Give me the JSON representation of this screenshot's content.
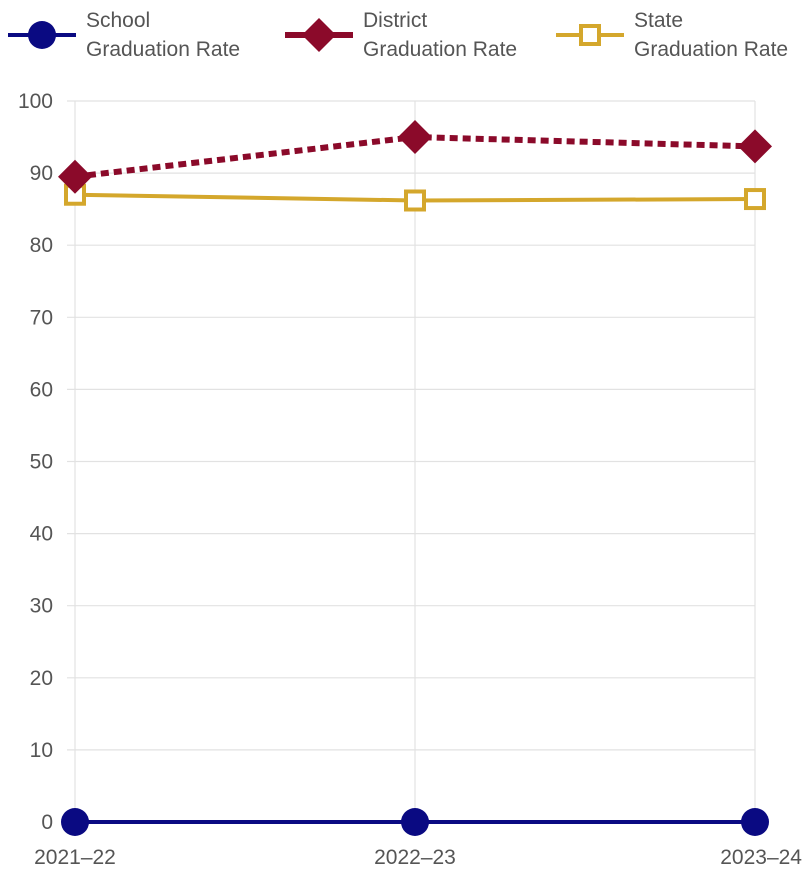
{
  "chart_data": {
    "type": "line",
    "title": "",
    "xlabel": "",
    "ylabel": "",
    "categories": [
      "2021–22",
      "2022–23",
      "2023–24"
    ],
    "ylim": [
      0,
      100
    ],
    "yticks": [
      0,
      10,
      20,
      30,
      40,
      50,
      60,
      70,
      80,
      90,
      100
    ],
    "grid": true,
    "legend_position": "top",
    "series": [
      {
        "key": "school",
        "legend_lines": [
          "School",
          "Graduation Rate"
        ],
        "values": [
          0,
          0,
          0
        ],
        "color": "#0a0a82",
        "marker": "circle",
        "line_style": "solid"
      },
      {
        "key": "district",
        "legend_lines": [
          "District",
          "Graduation Rate"
        ],
        "values": [
          89.5,
          95,
          93.7
        ],
        "color": "#8b0a2a",
        "marker": "diamond",
        "line_style": "dotted"
      },
      {
        "key": "state",
        "legend_lines": [
          "State",
          "Graduation Rate"
        ],
        "values": [
          87,
          86.2,
          86.4
        ],
        "color": "#d4a72c",
        "marker": "square-open",
        "line_style": "solid"
      }
    ]
  }
}
